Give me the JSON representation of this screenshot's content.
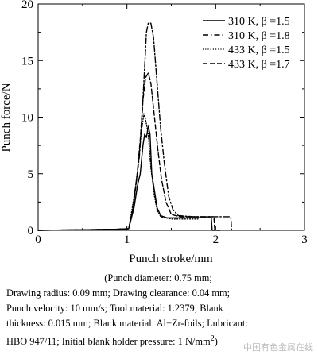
{
  "chart_data": {
    "type": "line",
    "title": "",
    "xlabel": "Punch stroke/mm",
    "ylabel": "Punch force/N",
    "xlim": [
      0,
      3
    ],
    "ylim": [
      0,
      20
    ],
    "x_ticks": [
      0,
      1,
      2,
      3
    ],
    "y_ticks": [
      0,
      5,
      10,
      15,
      20
    ],
    "x_tick_labels": [
      "0",
      "1",
      "2",
      "3"
    ],
    "y_tick_labels": [
      "0",
      "5",
      "10",
      "15",
      "20"
    ],
    "grid": false,
    "legend_position": "top-right",
    "series": [
      {
        "name": "310 K, β =1.5",
        "line_style": "solid",
        "color": "#000000",
        "points": [
          [
            0,
            0.0
          ],
          [
            0.5,
            0.05
          ],
          [
            0.9,
            0.1
          ],
          [
            1.02,
            0.15
          ],
          [
            1.08,
            2.0
          ],
          [
            1.12,
            4.0
          ],
          [
            1.15,
            5.0
          ],
          [
            1.18,
            7.5
          ],
          [
            1.2,
            8.5
          ],
          [
            1.22,
            8.2
          ],
          [
            1.24,
            9.2
          ],
          [
            1.26,
            8.5
          ],
          [
            1.28,
            5.0
          ],
          [
            1.31,
            3.5
          ],
          [
            1.34,
            2.0
          ],
          [
            1.38,
            1.3
          ],
          [
            1.45,
            1.1
          ],
          [
            1.6,
            1.1
          ],
          [
            1.95,
            1.1
          ],
          [
            1.96,
            0.0
          ],
          [
            2.0,
            0.0
          ]
        ]
      },
      {
        "name": "310 K, β =1.8",
        "line_style": "dashdot",
        "color": "#000000",
        "points": [
          [
            0,
            0.0
          ],
          [
            0.5,
            0.05
          ],
          [
            0.9,
            0.1
          ],
          [
            1.02,
            0.15
          ],
          [
            1.07,
            2.0
          ],
          [
            1.1,
            4.0
          ],
          [
            1.14,
            6.5
          ],
          [
            1.17,
            10.0
          ],
          [
            1.2,
            14.5
          ],
          [
            1.22,
            17.5
          ],
          [
            1.24,
            18.3
          ],
          [
            1.27,
            18.3
          ],
          [
            1.3,
            17.0
          ],
          [
            1.34,
            13.0
          ],
          [
            1.38,
            9.0
          ],
          [
            1.42,
            6.0
          ],
          [
            1.47,
            3.0
          ],
          [
            1.52,
            1.8
          ],
          [
            1.58,
            1.3
          ],
          [
            1.75,
            1.2
          ],
          [
            2.0,
            1.2
          ],
          [
            2.17,
            1.2
          ],
          [
            2.18,
            0.0
          ]
        ]
      },
      {
        "name": "433 K, β =1.5",
        "line_style": "dotted",
        "color": "#000000",
        "points": [
          [
            0,
            0.0
          ],
          [
            0.5,
            0.05
          ],
          [
            0.9,
            0.1
          ],
          [
            1.02,
            0.15
          ],
          [
            1.06,
            2.0
          ],
          [
            1.1,
            4.0
          ],
          [
            1.13,
            6.0
          ],
          [
            1.16,
            8.5
          ],
          [
            1.19,
            10.3
          ],
          [
            1.21,
            9.8
          ],
          [
            1.24,
            8.5
          ],
          [
            1.27,
            5.5
          ],
          [
            1.31,
            3.0
          ],
          [
            1.34,
            1.8
          ],
          [
            1.38,
            1.2
          ],
          [
            1.5,
            1.0
          ],
          [
            1.7,
            1.0
          ],
          [
            1.8,
            1.0
          ]
        ]
      },
      {
        "name": "433 K, β =1.7",
        "line_style": "dashed",
        "color": "#000000",
        "points": [
          [
            0,
            0.0
          ],
          [
            0.5,
            0.05
          ],
          [
            0.9,
            0.1
          ],
          [
            1.02,
            0.15
          ],
          [
            1.07,
            2.0
          ],
          [
            1.11,
            4.5
          ],
          [
            1.15,
            8.0
          ],
          [
            1.18,
            11.5
          ],
          [
            1.21,
            13.5
          ],
          [
            1.24,
            13.9
          ],
          [
            1.27,
            13.0
          ],
          [
            1.31,
            10.0
          ],
          [
            1.35,
            7.0
          ],
          [
            1.39,
            4.5
          ],
          [
            1.44,
            2.5
          ],
          [
            1.5,
            1.4
          ],
          [
            1.6,
            1.2
          ],
          [
            1.8,
            1.2
          ],
          [
            1.98,
            1.2
          ],
          [
            1.99,
            0.0
          ],
          [
            2.05,
            0.0
          ]
        ]
      }
    ]
  },
  "caption": {
    "lines": [
      "(Punch diameter: 0.75 mm;",
      "Drawing radius: 0.09 mm; Drawing clearance: 0.04 mm;",
      "Punch velocity: 10 mm/s; Tool material: 1.2379; Blank",
      "thickness: 0.015 mm; Blank material: Al−Zr-foils; Lubricant:"
    ],
    "last_line_prefix": "HBO 947/11; Initial blank holder pressure: 1 N/mm",
    "last_line_sup": "2",
    "last_line_suffix": ")"
  },
  "watermark": "中国有色金属在线"
}
